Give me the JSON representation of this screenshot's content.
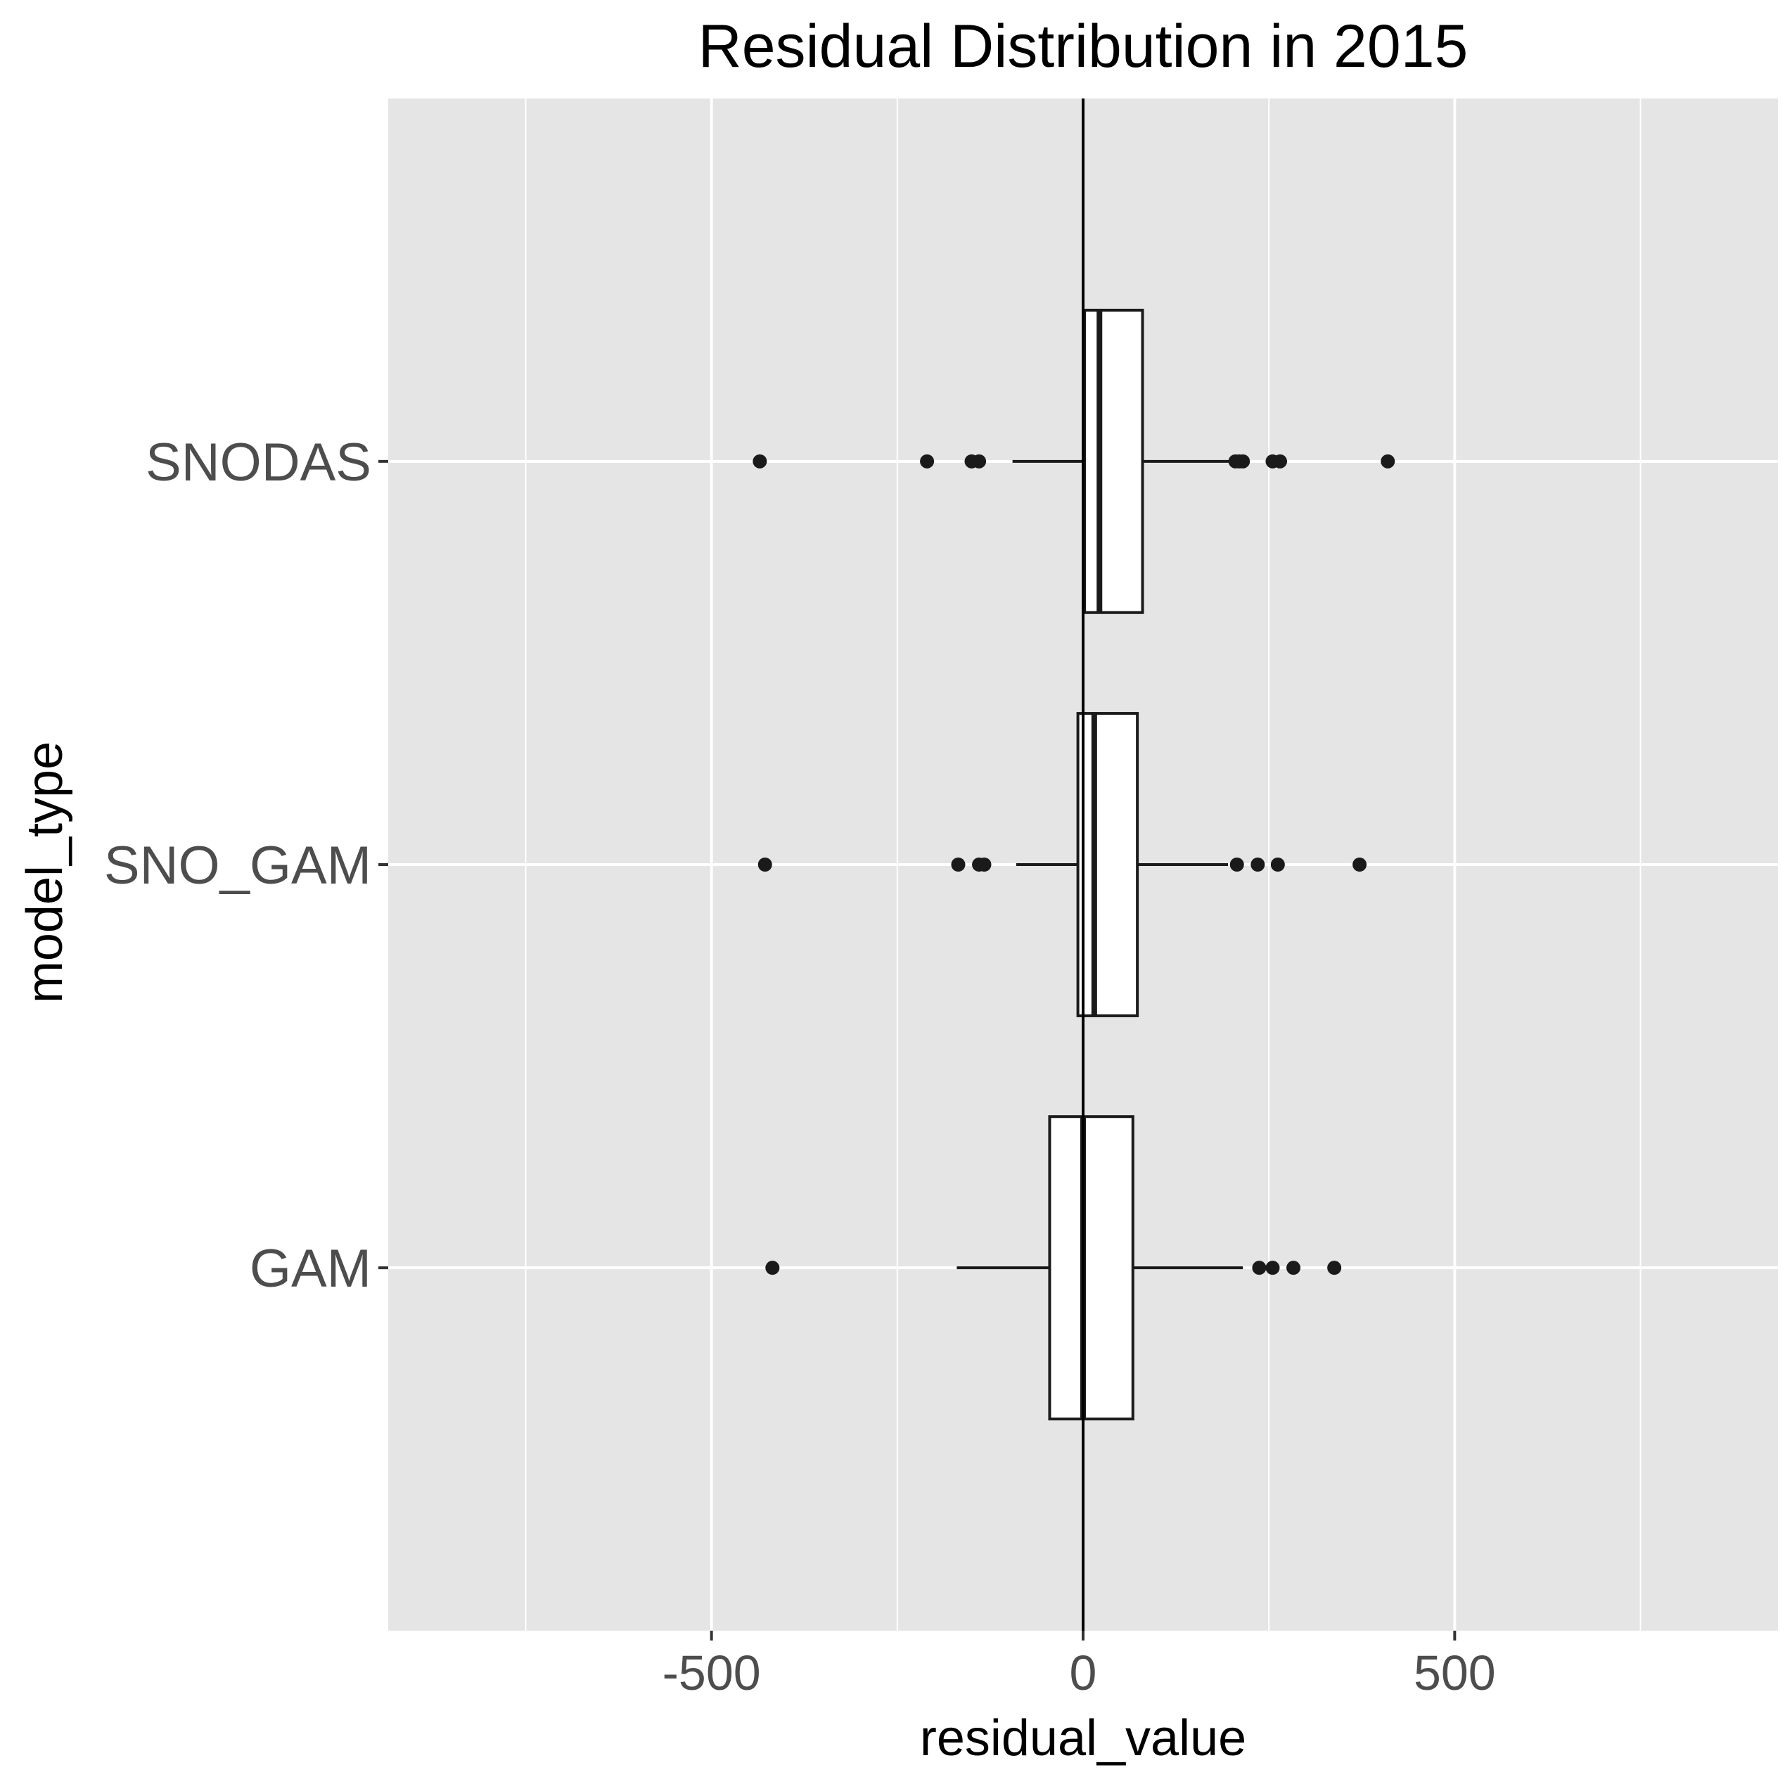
{
  "chart_data": {
    "type": "boxplot",
    "orientation": "horizontal",
    "title": "Residual Distribution in 2015",
    "xlabel": "residual_value",
    "ylabel": "model_type",
    "xlim": [
      -935,
      935
    ],
    "x_ticks": [
      -500,
      0,
      500
    ],
    "x_tick_labels": [
      "-500",
      "0",
      "500"
    ],
    "grid": true,
    "reference_line_x": 0,
    "colors": {
      "panel_background": "#e5e5e5",
      "grid": "#ffffff",
      "box_fill": "#ffffff",
      "box_stroke": "#1a1a1a",
      "outlier": "#1a1a1a",
      "tick_label": "#4d4d4d"
    },
    "categories": [
      "SNODAS",
      "SNO_GAM",
      "GAM"
    ],
    "series": [
      {
        "category": "SNODAS",
        "whisker_low": -95,
        "q1": 2,
        "median": 22,
        "q3": 80,
        "whisker_high": 200,
        "outliers": [
          -435,
          -210,
          -150,
          -140,
          205,
          210,
          215,
          255,
          265,
          410
        ]
      },
      {
        "category": "SNO_GAM",
        "whisker_low": -90,
        "q1": -7,
        "median": 15,
        "q3": 73,
        "whisker_high": 195,
        "outliers": [
          -428,
          -168,
          -140,
          -133,
          207,
          235,
          262,
          372
        ]
      },
      {
        "category": "GAM",
        "whisker_low": -170,
        "q1": -45,
        "median": 0,
        "q3": 67,
        "whisker_high": 215,
        "outliers": [
          -418,
          237,
          255,
          283,
          338
        ]
      }
    ]
  }
}
